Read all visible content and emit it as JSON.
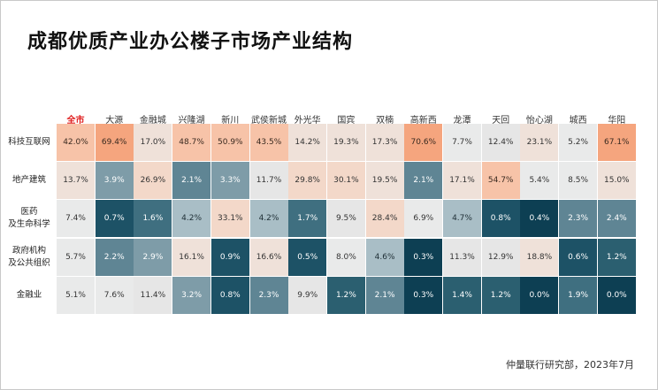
{
  "title": "成都优质产业办公楼子市场产业结构",
  "source": "仲量联行研究部，2023年7月",
  "colors": {
    "highlight_header": "#e02020",
    "scale_low": "#f5c2a8",
    "scale_high": "#004a5e"
  },
  "chart_data": {
    "type": "heatmap",
    "title": "成都优质产业办公楼子市场产业结构",
    "highlight_column": "全市",
    "columns": [
      "全市",
      "大源",
      "金融城",
      "兴隆湖",
      "新川",
      "武侯新城",
      "外光华",
      "国宾",
      "双楠",
      "高新西",
      "龙潭",
      "天回",
      "怡心湖",
      "城西",
      "华阳"
    ],
    "rows": [
      {
        "label": [
          "科技互联网"
        ],
        "values": [
          42.0,
          69.4,
          17.0,
          48.7,
          50.9,
          43.5,
          14.2,
          19.3,
          17.3,
          70.6,
          7.7,
          12.4,
          23.1,
          5.2,
          67.1
        ]
      },
      {
        "label": [
          "地产建筑"
        ],
        "values": [
          13.7,
          3.9,
          26.9,
          2.1,
          3.3,
          11.7,
          29.8,
          30.1,
          19.5,
          2.1,
          17.1,
          54.7,
          5.4,
          8.5,
          15.0
        ]
      },
      {
        "label": [
          "医药",
          "及生命科学"
        ],
        "values": [
          7.4,
          0.7,
          1.6,
          4.2,
          33.1,
          4.2,
          1.7,
          9.5,
          28.4,
          6.9,
          4.7,
          0.8,
          0.4,
          2.3,
          2.4
        ]
      },
      {
        "label": [
          "政府机构",
          "及公共组织"
        ],
        "values": [
          5.7,
          2.2,
          2.9,
          16.1,
          0.9,
          16.6,
          0.5,
          8.0,
          4.6,
          0.3,
          11.3,
          12.9,
          18.8,
          0.6,
          1.2
        ]
      },
      {
        "label": [
          "金融业"
        ],
        "values": [
          5.1,
          7.6,
          11.4,
          3.2,
          0.8,
          2.3,
          9.9,
          1.2,
          2.1,
          0.3,
          1.4,
          1.2,
          0.0,
          1.9,
          0.0
        ]
      }
    ]
  }
}
